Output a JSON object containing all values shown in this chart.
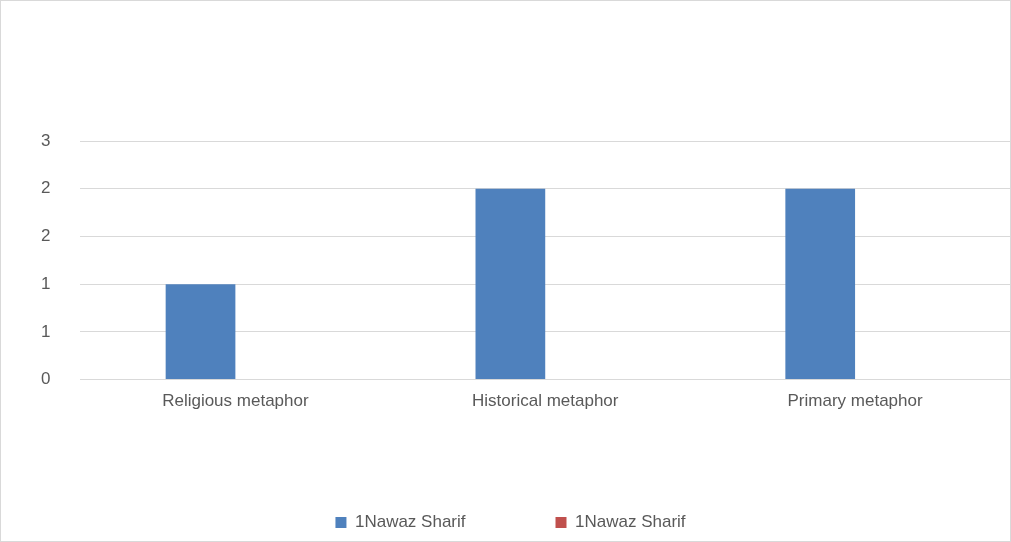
{
  "chart_data": {
    "type": "bar",
    "categories": [
      "Religious metaphor",
      "Historical metaphor",
      "Primary metaphor"
    ],
    "series": [
      {
        "name": "1Nawaz Sharif",
        "color": "#4f81bd",
        "values": [
          1,
          2,
          2
        ]
      },
      {
        "name": "1Nawaz Sharif",
        "color": "#c0504d",
        "values": [
          0,
          0,
          0
        ]
      }
    ],
    "ylim": [
      0,
      2.5
    ],
    "yticks": [
      0,
      {
        "value": 0.5,
        "label": "1"
      },
      1,
      {
        "value": 1.5,
        "label": "2"
      },
      2,
      {
        "value": 2.5,
        "label": "3"
      }
    ],
    "grid": "y",
    "legend": "bottom"
  }
}
